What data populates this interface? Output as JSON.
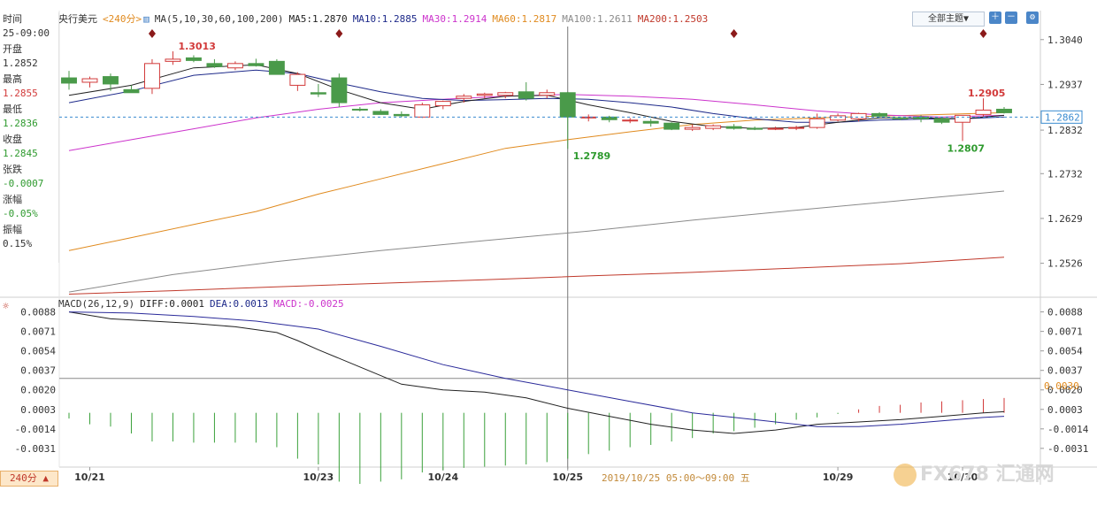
{
  "instrument": "央行美元",
  "period_tag": "<240分>",
  "ma_legend": {
    "prefix": "MA(5,10,30,60,100,200)",
    "ma5": "MA5:1.2870",
    "ma10": "MA10:1.2885",
    "ma30": "MA30:1.2914",
    "ma60": "MA60:1.2817",
    "ma100": "MA100:1.2611",
    "ma200": "MA200:1.2503"
  },
  "topbar": {
    "theme_button": "全部主题▼"
  },
  "info_panel": {
    "time_label": "时间",
    "time_value": "25-09:00",
    "open_label": "开盘",
    "open_value": "1.2852",
    "high_label": "最高",
    "high_value": "1.2855",
    "low_label": "最低",
    "low_value": "1.2836",
    "close_label": "收盘",
    "close_value": "1.2845",
    "change_label": "张跌",
    "change_value": "-0.0007",
    "pct_label": "涨幅",
    "pct_value": "-0.05%",
    "amp_label": "振幅",
    "amp_value": "0.15%"
  },
  "macd_legend": {
    "prefix": "MACD(26,12,9)",
    "diff": "DIFF:0.0001",
    "dea": "DEA:0.0013",
    "macd": "MACD:-0.0025"
  },
  "period_button": "240分 ▲",
  "hover_time": "2019/10/25 05:00～09:00 五",
  "watermark": "FX678 汇通网",
  "colors": {
    "up": "#d23a3a",
    "down": "#4a9a4a",
    "ma5": "#222222",
    "ma10": "#1e2a8a",
    "ma30": "#cc33cc",
    "ma60": "#e08a1e",
    "ma100": "#8a8a8a",
    "ma200": "#c0392b"
  },
  "chart_data": [
    {
      "type": "candlestick",
      "ylim": [
        1.245,
        1.307
      ],
      "y_ticks": [
        "1.3040",
        "1.2937",
        "1.2832",
        "1.2732",
        "1.2629",
        "1.2526"
      ],
      "x_labels": [
        {
          "label": "10/21",
          "index": 1
        },
        {
          "label": "10/23",
          "index": 12
        },
        {
          "label": "10/24",
          "index": 18
        },
        {
          "label": "10/25",
          "index": 24
        },
        {
          "label": "10/29",
          "index": 37
        },
        {
          "label": "10/30",
          "index": 43
        }
      ],
      "current_price": "1.2862",
      "current_value": 1.2862,
      "annotations": [
        {
          "label": "1.3013",
          "index": 5,
          "value": 1.3013,
          "color": "#d23a3a"
        },
        {
          "label": "1.2789",
          "index": 24,
          "value": 1.2789,
          "color": "#2e9a2e"
        },
        {
          "label": "1.2905",
          "index": 43,
          "value": 1.2905,
          "color": "#d23a3a"
        },
        {
          "label": "1.2807",
          "index": 42,
          "value": 1.2807,
          "color": "#2e9a2e"
        }
      ],
      "event_markers": [
        4,
        13,
        32,
        44
      ],
      "candles": [
        [
          1.2952,
          1.2968,
          1.2925,
          1.294
        ],
        [
          1.2942,
          1.2955,
          1.293,
          1.295
        ],
        [
          1.2955,
          1.2962,
          1.2922,
          1.2938
        ],
        [
          1.2925,
          1.2935,
          1.2918,
          1.2918
        ],
        [
          1.2928,
          1.2995,
          1.2915,
          1.2985
        ],
        [
          1.299,
          1.3013,
          1.2982,
          1.2995
        ],
        [
          1.2998,
          1.3004,
          1.2988,
          1.2992
        ],
        [
          1.2985,
          1.2995,
          1.2975,
          1.2978
        ],
        [
          1.2975,
          1.299,
          1.297,
          1.2985
        ],
        [
          1.2985,
          1.2996,
          1.2978,
          1.298
        ],
        [
          1.299,
          1.2995,
          1.296,
          1.296
        ],
        [
          1.2935,
          1.2965,
          1.2922,
          1.296
        ],
        [
          1.2918,
          1.2938,
          1.2908,
          1.2915
        ],
        [
          1.2952,
          1.2962,
          1.2885,
          1.2895
        ],
        [
          1.288,
          1.2885,
          1.2875,
          1.2878
        ],
        [
          1.2875,
          1.288,
          1.2868,
          1.2868
        ],
        [
          1.2868,
          1.2875,
          1.2862,
          1.2865
        ],
        [
          1.2862,
          1.2895,
          1.286,
          1.289
        ],
        [
          1.2888,
          1.29,
          1.288,
          1.2898
        ],
        [
          1.2905,
          1.2915,
          1.2895,
          1.291
        ],
        [
          1.2912,
          1.2918,
          1.2905,
          1.2915
        ],
        [
          1.2912,
          1.292,
          1.2905,
          1.2918
        ],
        [
          1.292,
          1.2942,
          1.29,
          1.2905
        ],
        [
          1.2912,
          1.2925,
          1.2905,
          1.2918
        ],
        [
          1.2918,
          1.292,
          1.2789,
          1.2862
        ],
        [
          1.286,
          1.2868,
          1.2852,
          1.2862
        ],
        [
          1.2862,
          1.2865,
          1.285,
          1.2856
        ],
        [
          1.2855,
          1.286,
          1.2848,
          1.2855
        ],
        [
          1.2852,
          1.2858,
          1.284,
          1.2848
        ],
        [
          1.2848,
          1.285,
          1.2832,
          1.2834
        ],
        [
          1.2834,
          1.2845,
          1.283,
          1.2838
        ],
        [
          1.2836,
          1.2845,
          1.2832,
          1.2842
        ],
        [
          1.284,
          1.2846,
          1.2833,
          1.2836
        ],
        [
          1.2836,
          1.284,
          1.2832,
          1.2834
        ],
        [
          1.2834,
          1.284,
          1.2832,
          1.2836
        ],
        [
          1.2836,
          1.2842,
          1.2832,
          1.2838
        ],
        [
          1.2838,
          1.287,
          1.2835,
          1.2858
        ],
        [
          1.2855,
          1.287,
          1.2852,
          1.2865
        ],
        [
          1.2858,
          1.2872,
          1.2852,
          1.287
        ],
        [
          1.287,
          1.2873,
          1.2862,
          1.2864
        ],
        [
          1.286,
          1.2862,
          1.2855,
          1.2858
        ],
        [
          1.2862,
          1.2866,
          1.285,
          1.2858
        ],
        [
          1.2858,
          1.2862,
          1.2846,
          1.285
        ],
        [
          1.285,
          1.2866,
          1.2807,
          1.2866
        ],
        [
          1.2868,
          1.2905,
          1.2862,
          1.2878
        ],
        [
          1.288,
          1.2885,
          1.287,
          1.2872
        ]
      ],
      "ma_lines": {
        "ma5": [
          [
            0,
            1.2912
          ],
          [
            3,
            1.2935
          ],
          [
            6,
            1.2975
          ],
          [
            9,
            1.2982
          ],
          [
            11,
            1.2962
          ],
          [
            13,
            1.2925
          ],
          [
            15,
            1.2895
          ],
          [
            17,
            1.288
          ],
          [
            19,
            1.2898
          ],
          [
            21,
            1.291
          ],
          [
            23,
            1.2912
          ],
          [
            25,
            1.289
          ],
          [
            27,
            1.2872
          ],
          [
            29,
            1.2852
          ],
          [
            31,
            1.284
          ],
          [
            33,
            1.2836
          ],
          [
            35,
            1.2838
          ],
          [
            37,
            1.285
          ],
          [
            39,
            1.286
          ],
          [
            41,
            1.286
          ],
          [
            43,
            1.2858
          ],
          [
            45,
            1.2866
          ]
        ],
        "ma10": [
          [
            0,
            1.2895
          ],
          [
            3,
            1.2922
          ],
          [
            6,
            1.2958
          ],
          [
            9,
            1.297
          ],
          [
            11,
            1.2962
          ],
          [
            13,
            1.294
          ],
          [
            15,
            1.292
          ],
          [
            17,
            1.2905
          ],
          [
            19,
            1.29
          ],
          [
            21,
            1.2902
          ],
          [
            23,
            1.2905
          ],
          [
            25,
            1.2903
          ],
          [
            27,
            1.2895
          ],
          [
            29,
            1.2885
          ],
          [
            31,
            1.287
          ],
          [
            33,
            1.2858
          ],
          [
            35,
            1.285
          ],
          [
            37,
            1.285
          ],
          [
            39,
            1.2855
          ],
          [
            41,
            1.2857
          ],
          [
            43,
            1.2858
          ],
          [
            45,
            1.2862
          ]
        ],
        "ma30": [
          [
            0,
            1.2785
          ],
          [
            3,
            1.281
          ],
          [
            6,
            1.2835
          ],
          [
            9,
            1.286
          ],
          [
            12,
            1.288
          ],
          [
            15,
            1.2895
          ],
          [
            18,
            1.2903
          ],
          [
            21,
            1.291
          ],
          [
            24,
            1.2914
          ],
          [
            27,
            1.291
          ],
          [
            30,
            1.2903
          ],
          [
            33,
            1.289
          ],
          [
            36,
            1.2876
          ],
          [
            39,
            1.2867
          ],
          [
            42,
            1.2862
          ],
          [
            45,
            1.2866
          ]
        ],
        "ma60": [
          [
            0,
            1.2555
          ],
          [
            3,
            1.2585
          ],
          [
            6,
            1.2615
          ],
          [
            9,
            1.2645
          ],
          [
            12,
            1.2685
          ],
          [
            15,
            1.272
          ],
          [
            18,
            1.2755
          ],
          [
            21,
            1.279
          ],
          [
            24,
            1.281
          ],
          [
            27,
            1.2828
          ],
          [
            30,
            1.2845
          ],
          [
            33,
            1.2855
          ],
          [
            36,
            1.286
          ],
          [
            39,
            1.2864
          ],
          [
            42,
            1.2868
          ],
          [
            45,
            1.2872
          ]
        ],
        "ma100": [
          [
            0,
            1.246
          ],
          [
            5,
            1.25
          ],
          [
            10,
            1.253
          ],
          [
            15,
            1.2555
          ],
          [
            20,
            1.2578
          ],
          [
            25,
            1.26
          ],
          [
            30,
            1.2625
          ],
          [
            35,
            1.2648
          ],
          [
            40,
            1.267
          ],
          [
            45,
            1.2692
          ]
        ],
        "ma200": [
          [
            0,
            1.2455
          ],
          [
            5,
            1.2463
          ],
          [
            10,
            1.2472
          ],
          [
            15,
            1.248
          ],
          [
            20,
            1.2488
          ],
          [
            25,
            1.2497
          ],
          [
            30,
            1.2505
          ],
          [
            35,
            1.2515
          ],
          [
            40,
            1.2525
          ],
          [
            45,
            1.254
          ]
        ]
      }
    },
    {
      "type": "macd",
      "ylim": [
        -0.0045,
        0.009
      ],
      "y_ticks": [
        "0.0088",
        "0.0071",
        "0.0054",
        "0.0037",
        "0.0020",
        "0.0003",
        "-0.0014",
        "-0.0031"
      ],
      "reference_label": "0.0030",
      "reference_value": 0.003,
      "diff": [
        [
          0,
          0.0088
        ],
        [
          2,
          0.0082
        ],
        [
          4,
          0.008
        ],
        [
          6,
          0.0078
        ],
        [
          8,
          0.0075
        ],
        [
          10,
          0.007
        ],
        [
          11,
          0.0063
        ],
        [
          12,
          0.0055
        ],
        [
          14,
          0.004
        ],
        [
          16,
          0.0025
        ],
        [
          18,
          0.002
        ],
        [
          20,
          0.0018
        ],
        [
          22,
          0.0013
        ],
        [
          24,
          0.0004
        ],
        [
          26,
          -0.0003
        ],
        [
          28,
          -0.001
        ],
        [
          30,
          -0.0015
        ],
        [
          32,
          -0.0018
        ],
        [
          34,
          -0.0015
        ],
        [
          36,
          -0.001
        ],
        [
          38,
          -0.0008
        ],
        [
          40,
          -0.0006
        ],
        [
          42,
          -0.0003
        ],
        [
          44,
          0.0
        ],
        [
          45,
          0.0001
        ]
      ],
      "dea": [
        [
          0,
          0.0088
        ],
        [
          3,
          0.0087
        ],
        [
          6,
          0.0084
        ],
        [
          9,
          0.008
        ],
        [
          12,
          0.0073
        ],
        [
          15,
          0.0058
        ],
        [
          18,
          0.0042
        ],
        [
          21,
          0.003
        ],
        [
          24,
          0.002
        ],
        [
          27,
          0.001
        ],
        [
          30,
          0.0
        ],
        [
          33,
          -0.0006
        ],
        [
          36,
          -0.0012
        ],
        [
          38,
          -0.0012
        ],
        [
          40,
          -0.001
        ],
        [
          42,
          -0.0007
        ],
        [
          44,
          -0.0004
        ],
        [
          45,
          -0.0003
        ]
      ],
      "histogram": [
        -0.0005,
        -0.001,
        -0.0012,
        -0.0018,
        -0.0025,
        -0.0025,
        -0.0026,
        -0.0026,
        -0.0026,
        -0.0026,
        -0.003,
        -0.004,
        -0.0045,
        -0.006,
        -0.0062,
        -0.006,
        -0.0058,
        -0.0052,
        -0.005,
        -0.0048,
        -0.0047,
        -0.0046,
        -0.0045,
        -0.0043,
        -0.004,
        -0.0036,
        -0.0033,
        -0.003,
        -0.0028,
        -0.0025,
        -0.0022,
        -0.0018,
        -0.0016,
        -0.0013,
        -0.001,
        -0.0006,
        -0.0004,
        -0.0001,
        0.0003,
        0.0006,
        0.0007,
        0.0009,
        0.001,
        0.0011,
        0.0012,
        0.0013
      ]
    }
  ]
}
